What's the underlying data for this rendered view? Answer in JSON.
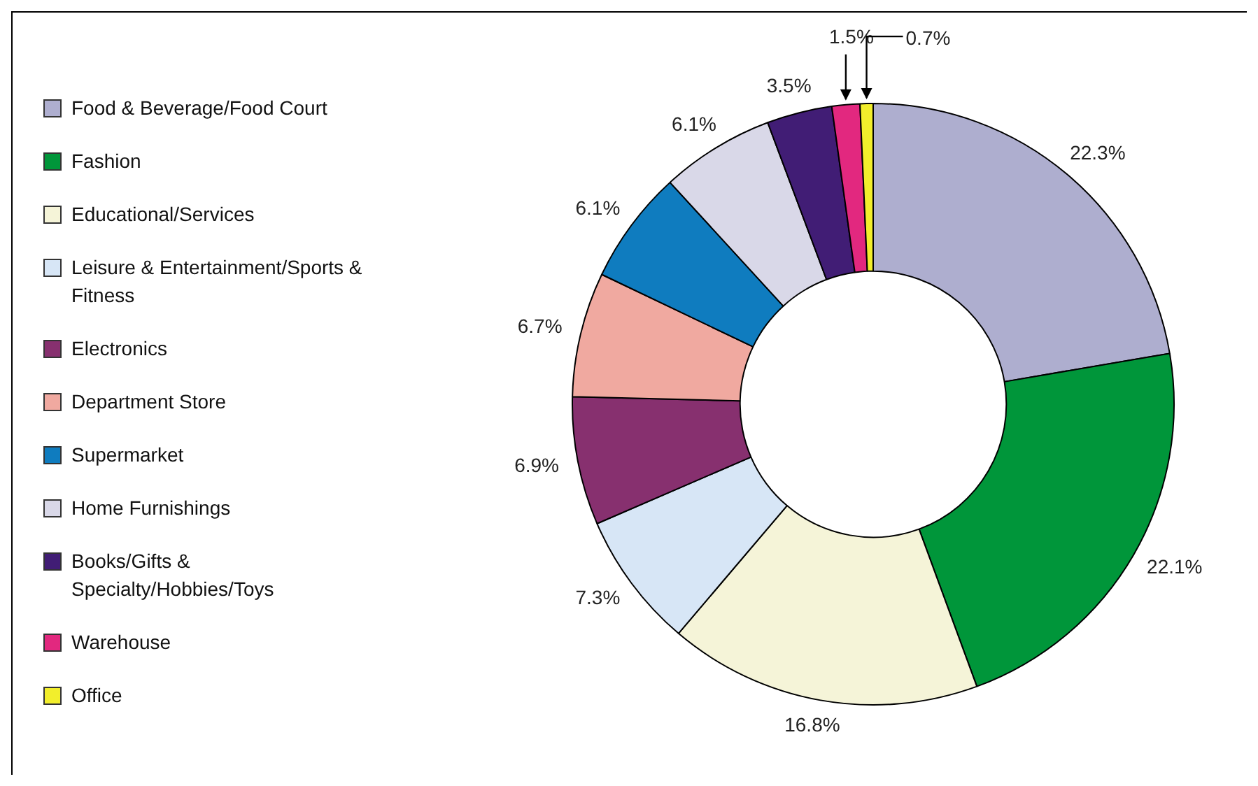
{
  "chart_data": {
    "type": "donut",
    "categories": [
      "Food & Beverage/Food Court",
      "Fashion",
      "Educational/Services",
      "Leisure & Entertainment/Sports & Fitness",
      "Electronics",
      "Department Store",
      "Supermarket",
      "Home Furnishings",
      "Books/Gifts & Specialty/Hobbies/Toys",
      "Warehouse",
      "Office"
    ],
    "values": [
      22.3,
      22.1,
      16.8,
      7.3,
      6.9,
      6.7,
      6.1,
      6.1,
      3.5,
      1.5,
      0.7
    ],
    "value_labels": [
      "22.3%",
      "22.1%",
      "16.8%",
      "7.3%",
      "6.9%",
      "6.7%",
      "6.1%",
      "6.1%",
      "3.5%",
      "1.5%",
      "0.7%"
    ],
    "colors": [
      "#aeaecf",
      "#00963a",
      "#f5f4d8",
      "#d7e6f6",
      "#87306f",
      "#f0a9a0",
      "#0f7cbf",
      "#d9d8e8",
      "#411d75",
      "#e2287f",
      "#f2ee2c"
    ],
    "legend": "left"
  }
}
